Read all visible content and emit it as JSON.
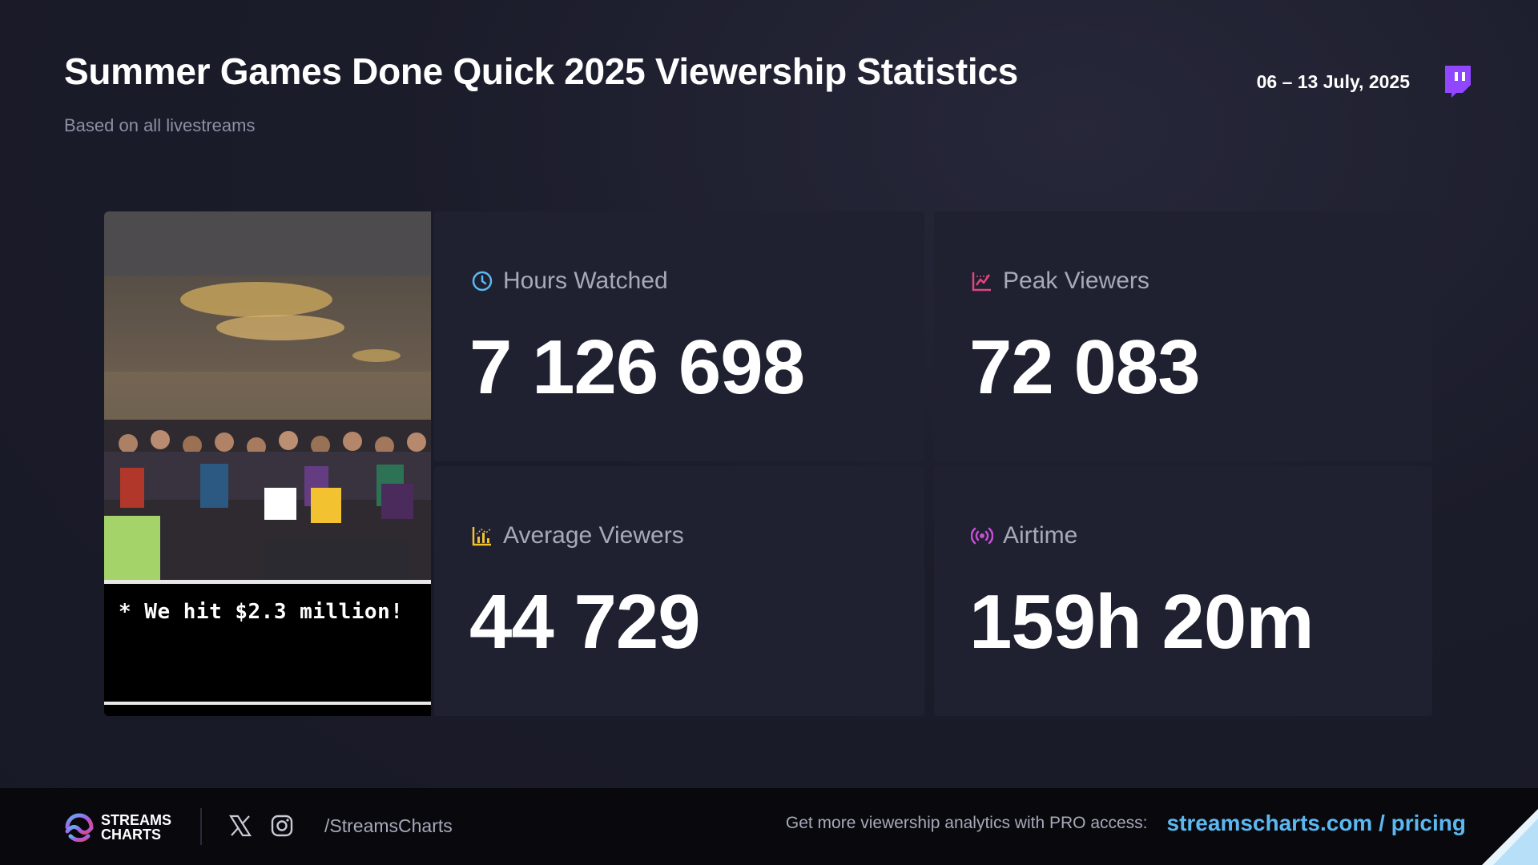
{
  "header": {
    "title": "Summer Games Done Quick 2025 Viewership Statistics",
    "subtitle": "Based on all livestreams",
    "date_range": "06 – 13 July, 2025",
    "platform_icon": "twitch-icon"
  },
  "photo": {
    "caption": "* We hit $2.3 million!"
  },
  "stats": {
    "hours_watched": {
      "label": "Hours Watched",
      "value": "7 126 698",
      "icon": "clock-icon",
      "color": "#5bb8f0"
    },
    "peak_viewers": {
      "label": "Peak Viewers",
      "value": "72 083",
      "icon": "chart-line-icon",
      "color": "#e0467c"
    },
    "average_viewers": {
      "label": "Average Viewers",
      "value": "44 729",
      "icon": "bar-chart-icon",
      "color": "#f2c230"
    },
    "airtime": {
      "label": "Airtime",
      "value": "159h 20m",
      "icon": "broadcast-icon",
      "color": "#c64fd8"
    }
  },
  "footer": {
    "logo_line1": "STREAMS",
    "logo_line2": "CHARTS",
    "handle": "/StreamsCharts",
    "promo_text": "Get more viewership analytics with PRO access:",
    "promo_link": "streamscharts.com / pricing"
  },
  "colors": {
    "background": "#1b1c2a",
    "card": "#1f2030",
    "accent_link": "#5bb8f0",
    "twitch": "#9146ff"
  }
}
